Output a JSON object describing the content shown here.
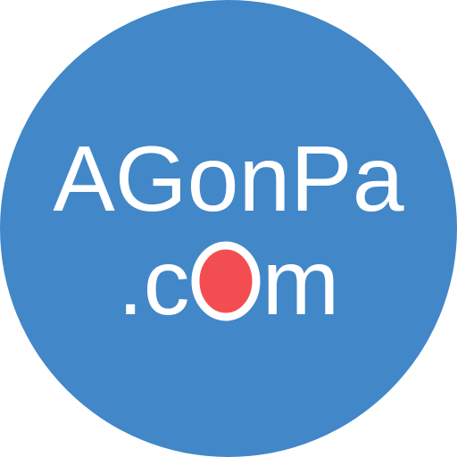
{
  "logo": {
    "line1": "AGonPa",
    "line2_prefix": ".c",
    "line2_o": "O",
    "line2_suffix": "m",
    "colors": {
      "circle": "#4287C8",
      "text": "#FFFFFF",
      "o_fill": "#F24E52"
    }
  }
}
